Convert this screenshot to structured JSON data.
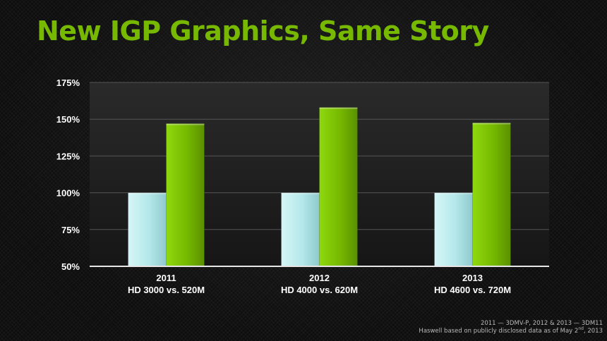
{
  "slide": {
    "title": "New IGP Graphics, Same Story",
    "footnote_line1": "2011 — 3DMV-P, 2012 & 2013 — 3DM11",
    "footnote_line2_main": "Haswell based on publicly disclosed data as of May 2",
    "footnote_line2_sup": "nd",
    "footnote_line2_end": ", 2013"
  },
  "colors": {
    "title": "#77b900",
    "igp_bar": "#b4e8ea",
    "gpu_bar": "#76b900",
    "background": "#0e0e0e"
  },
  "chart_data": {
    "type": "bar",
    "categories": [
      "2011",
      "2012",
      "2013"
    ],
    "category_sublabels": [
      "HD 3000 vs. 520M",
      "HD 4000 vs. 620M",
      "HD 4600 vs. 720M"
    ],
    "series": [
      {
        "values": [
          100,
          100,
          100
        ]
      },
      {
        "values": [
          147,
          158,
          147.5
        ]
      }
    ],
    "y_ticks": [
      "50%",
      "75%",
      "100%",
      "125%",
      "150%",
      "175%"
    ],
    "y_tick_values": [
      50,
      75,
      100,
      125,
      150,
      175
    ],
    "ylim": [
      50,
      175
    ],
    "title": "",
    "xlabel": "",
    "ylabel": "",
    "grid": true,
    "legend": "none"
  }
}
